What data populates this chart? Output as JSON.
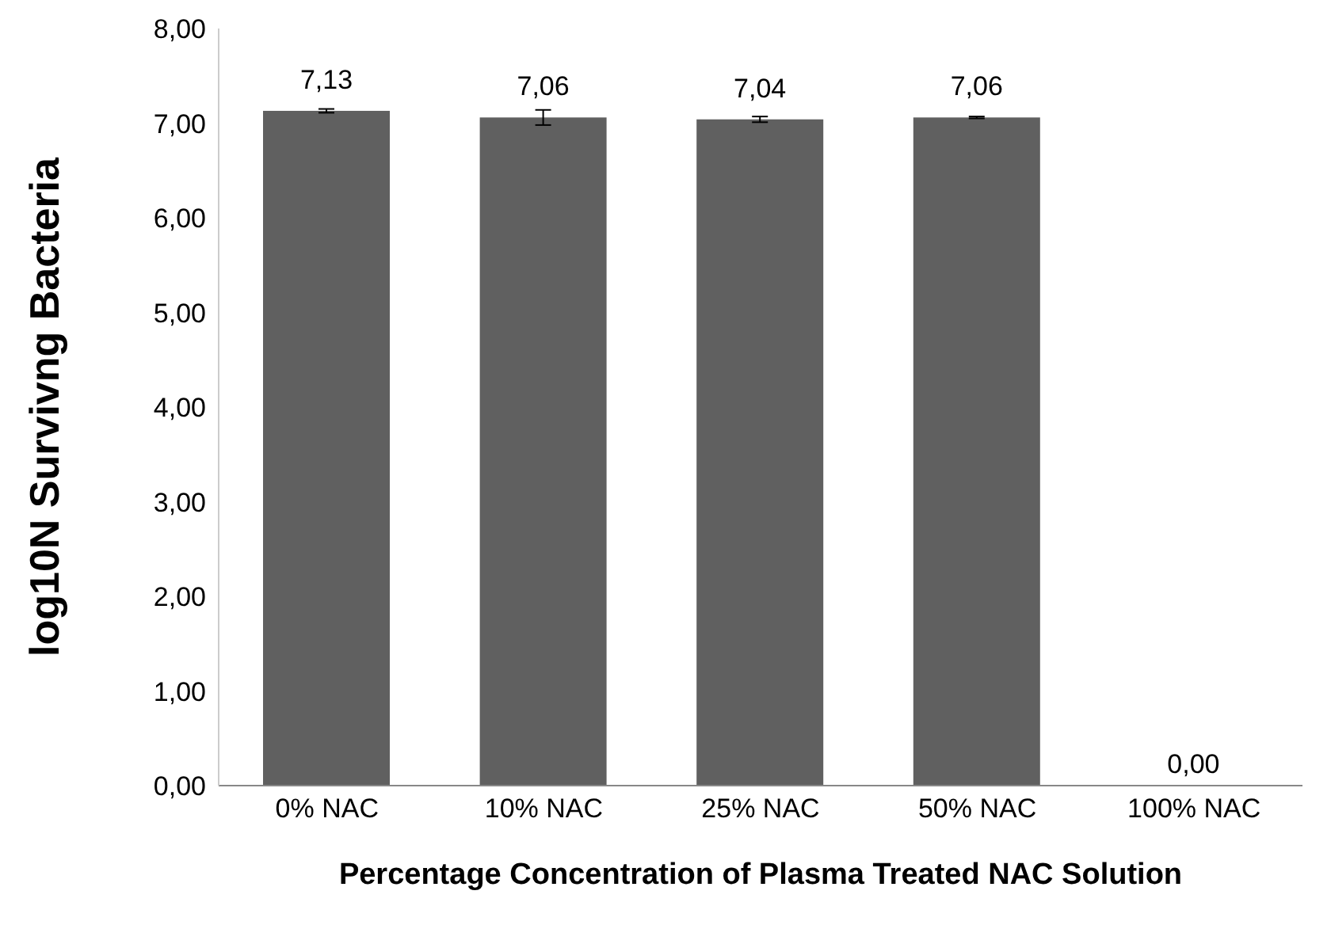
{
  "chart_data": {
    "type": "bar",
    "xlabel": "Percentage Concentration  of Plasma Treated NAC Solution",
    "ylabel": "log10N Survivng Bacteria",
    "categories": [
      "0% NAC",
      "10% NAC",
      "25% NAC",
      "50% NAC",
      "100% NAC"
    ],
    "values": [
      7.13,
      7.06,
      7.04,
      7.06,
      0
    ],
    "errors": [
      0.02,
      0.08,
      0.03,
      0.01,
      null
    ],
    "value_labels": [
      "7,13",
      "7,06",
      "7,04",
      "7,06",
      "0,00"
    ],
    "color": "#606060",
    "ylim": [
      0,
      8
    ],
    "yticks": [
      {
        "value": 0,
        "label": "0,00"
      },
      {
        "value": 1,
        "label": "1,00"
      },
      {
        "value": 2,
        "label": "2,00"
      },
      {
        "value": 3,
        "label": "3,00"
      },
      {
        "value": 4,
        "label": "4,00"
      },
      {
        "value": 5,
        "label": "5,00"
      },
      {
        "value": 6,
        "label": "6,00"
      },
      {
        "value": 7,
        "label": "7,00"
      },
      {
        "value": 8,
        "label": "8,00"
      }
    ],
    "grid": false
  }
}
